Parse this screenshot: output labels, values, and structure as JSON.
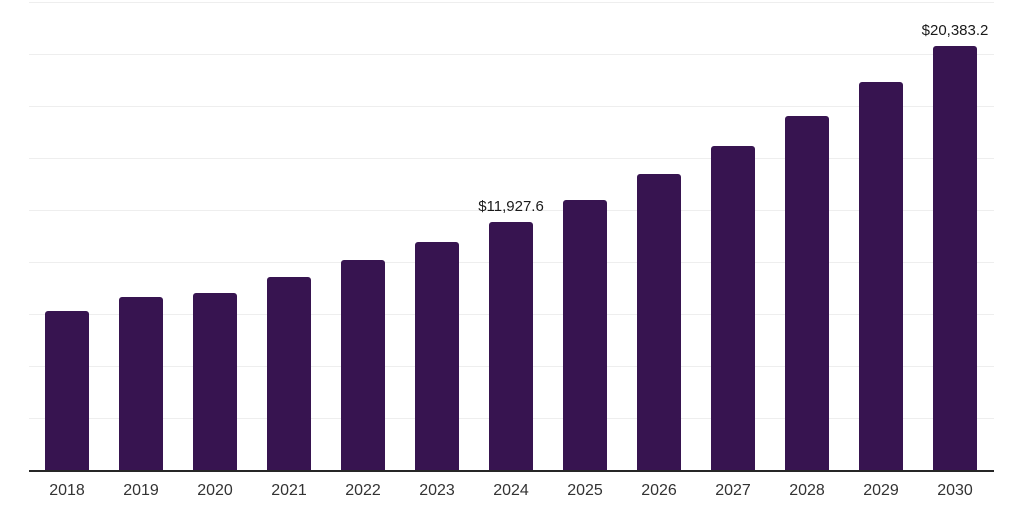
{
  "chart_data": {
    "type": "bar",
    "categories": [
      "2018",
      "2019",
      "2020",
      "2021",
      "2022",
      "2023",
      "2024",
      "2025",
      "2026",
      "2027",
      "2028",
      "2029",
      "2030"
    ],
    "values": [
      7650,
      8300,
      8500,
      9280,
      10100,
      10980,
      11927.6,
      13000,
      14230,
      15580,
      17000,
      18670,
      20383.2
    ],
    "bar_labels": [
      "",
      "",
      "",
      "",
      "",
      "",
      "$11,927.6",
      "",
      "",
      "",
      "",
      "",
      "$20,383.2"
    ],
    "ylim": [
      0,
      22500
    ],
    "gridline_step": 2500,
    "gridline_count": 9,
    "grid": "horizontal",
    "legend": "none",
    "y_axis_tick_labels": "none",
    "colors": {
      "bar": "#371450",
      "data_label": "#1a1a1a",
      "axis_label": "#333333",
      "gridline": "#eeeeee",
      "axis_line": "#262626",
      "background": "#ffffff"
    }
  }
}
